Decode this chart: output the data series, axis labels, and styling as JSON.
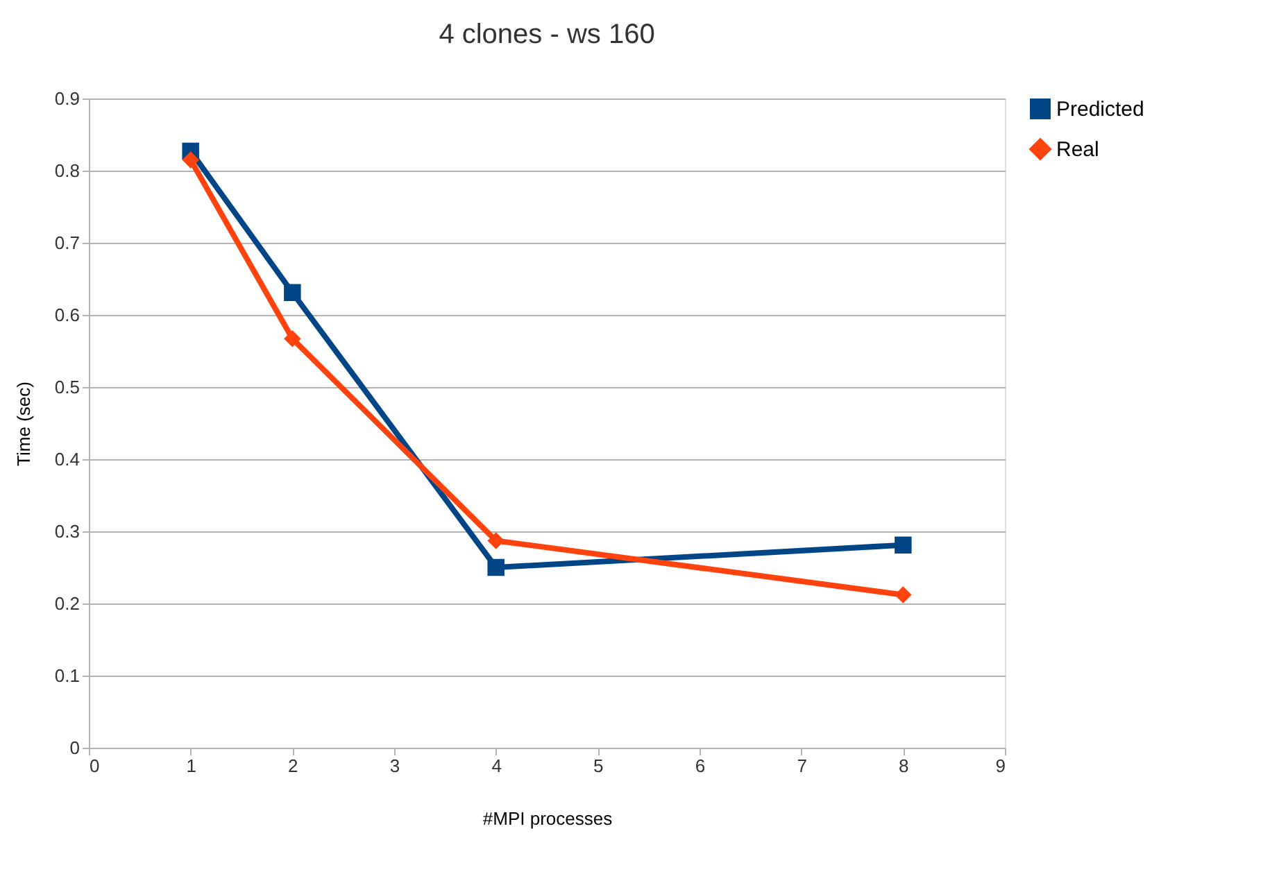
{
  "chart_data": {
    "type": "line",
    "title": "4 clones - ws 160",
    "xlabel": "#MPI processes",
    "ylabel": "Time (sec)",
    "x": [
      1,
      2,
      4,
      8
    ],
    "series": [
      {
        "name": "Predicted",
        "color": "#004586",
        "marker": "square",
        "values": [
          0.827,
          0.631,
          0.25,
          0.281
        ]
      },
      {
        "name": "Real",
        "color": "#ff420e",
        "marker": "diamond",
        "values": [
          0.815,
          0.567,
          0.287,
          0.212
        ]
      }
    ],
    "xlim": [
      0,
      9
    ],
    "xticks": [
      0,
      1,
      2,
      3,
      4,
      5,
      6,
      7,
      8,
      9
    ],
    "ylim": [
      0,
      0.9
    ],
    "yticks": [
      0,
      0.1,
      0.2,
      0.3,
      0.4,
      0.5,
      0.6,
      0.7,
      0.8,
      0.9
    ],
    "grid": "y",
    "legend": "right",
    "line_style": "solid"
  }
}
